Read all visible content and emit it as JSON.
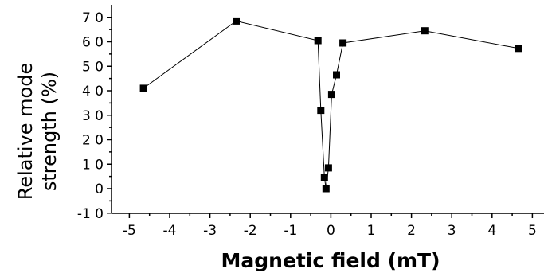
{
  "chart_data": {
    "type": "scatter",
    "title": "",
    "xlabel": "Magnetic field (mT)",
    "ylabel_lines": [
      "Relative mode",
      "strength (%)"
    ],
    "xlim": [
      -5.8,
      5.4
    ],
    "ylim": [
      -10,
      75
    ],
    "xticks": [
      -5,
      -4,
      -3,
      -2,
      -1,
      0,
      1,
      2,
      3,
      4,
      5
    ],
    "xtick_labels": [
      "-5",
      "-4",
      "-3",
      "-2",
      "-1",
      "0",
      "1",
      "2",
      "3",
      "4",
      "5"
    ],
    "yticks": [
      -10,
      0,
      10,
      20,
      30,
      40,
      50,
      60,
      70
    ],
    "ytick_labels": [
      "-1 0",
      "0",
      "1 0",
      "2 0",
      "3 0",
      "4 0",
      "5 0",
      "6 0",
      "7 0"
    ],
    "grid": false,
    "series": [
      {
        "marker": "square",
        "color": "#000000",
        "points": [
          {
            "x": -4.65,
            "y": 41
          },
          {
            "x": -2.35,
            "y": 68.5
          },
          {
            "x": -0.32,
            "y": 60.5
          },
          {
            "x": -0.25,
            "y": 32
          },
          {
            "x": -0.16,
            "y": 4.7
          },
          {
            "x": -0.12,
            "y": 0
          },
          {
            "x": -0.06,
            "y": 8.5
          },
          {
            "x": 0.02,
            "y": 38.5
          },
          {
            "x": 0.14,
            "y": 46.5
          },
          {
            "x": 0.3,
            "y": 59.5
          },
          {
            "x": 2.33,
            "y": 64.5
          },
          {
            "x": 4.66,
            "y": 57.3
          }
        ]
      }
    ]
  }
}
